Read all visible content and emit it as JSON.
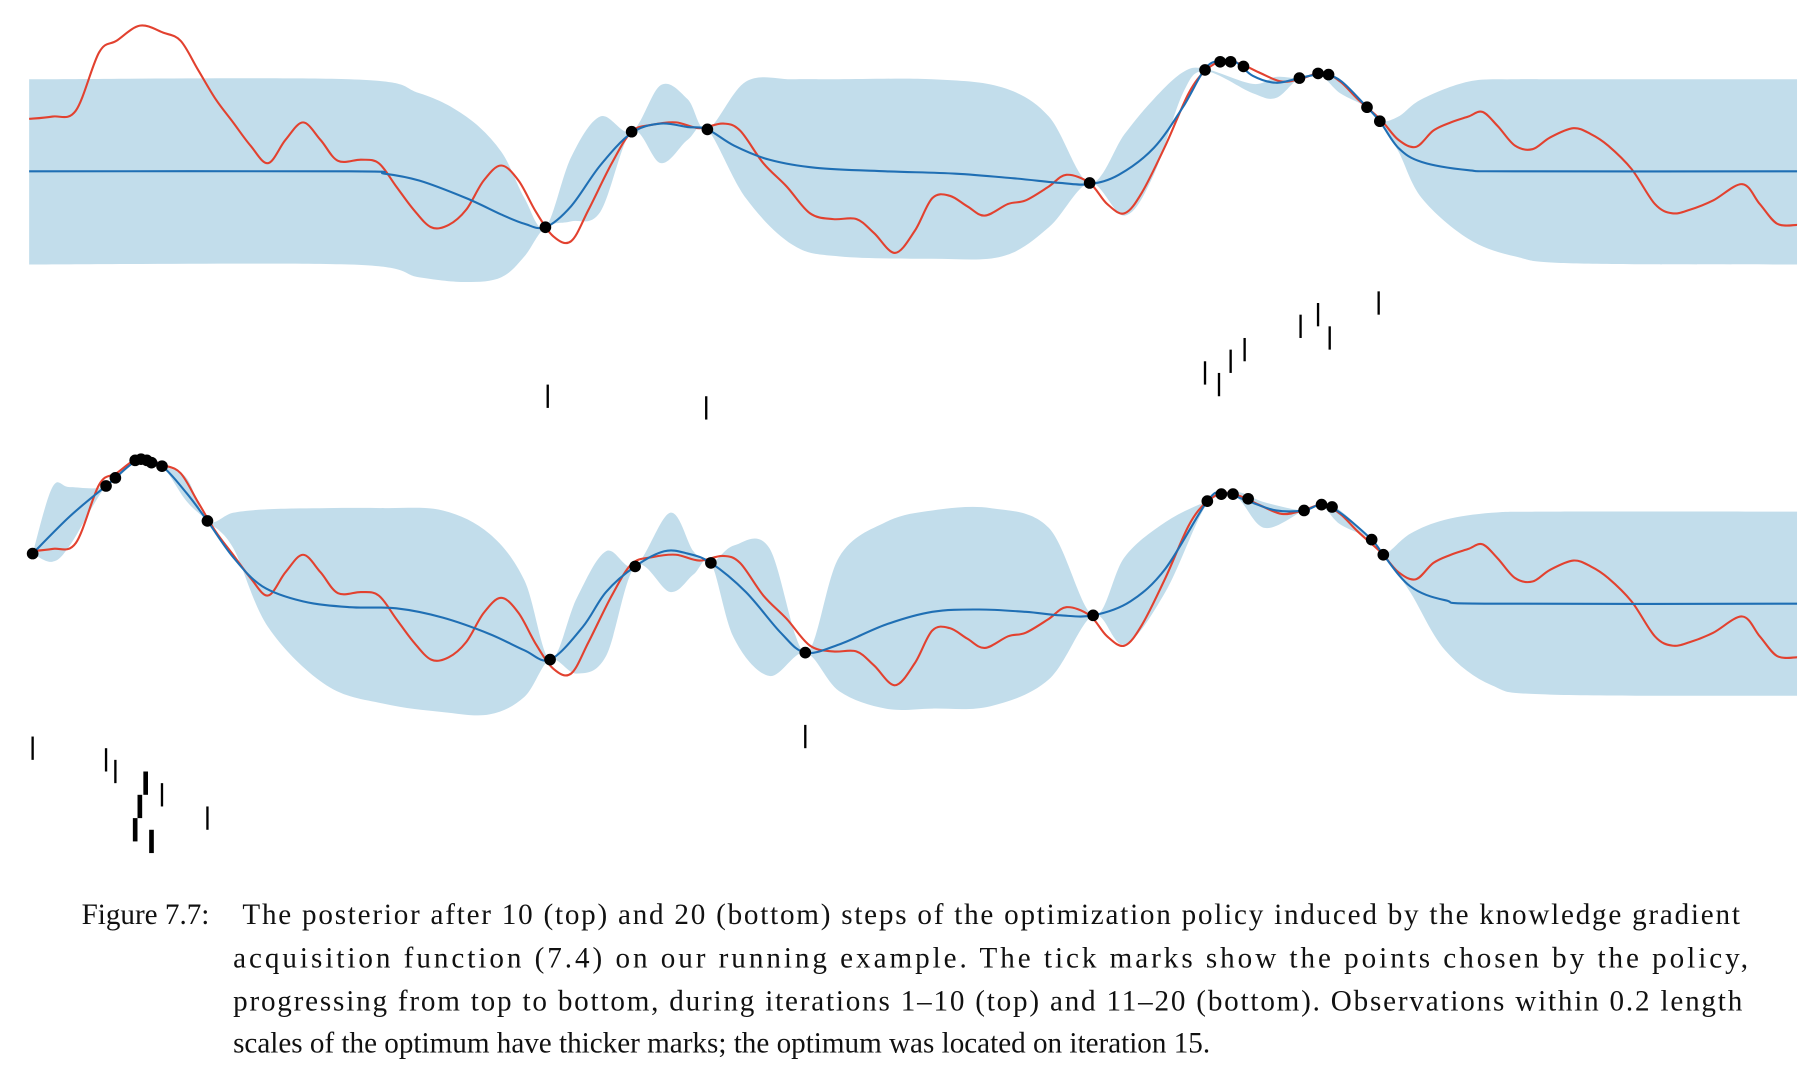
{
  "chart_data": {
    "type": "line",
    "xlim": [
      25,
      1542
    ],
    "ylim": [
      -110,
      130
    ],
    "objective": {
      "color": "#e2412f",
      "x": [
        25,
        45,
        65,
        85,
        100,
        120,
        140,
        155,
        170,
        185,
        200,
        215,
        230,
        245,
        260,
        275,
        290,
        310,
        325,
        340,
        355,
        370,
        385,
        400,
        415,
        430,
        445,
        460,
        475,
        490,
        505,
        525,
        542,
        560,
        580,
        600,
        620,
        635,
        655,
        675,
        695,
        715,
        735,
        750,
        768,
        785,
        800,
        815,
        830,
        845,
        865,
        880,
        900,
        915,
        935,
        950,
        965,
        980,
        1000,
        1020,
        1035,
        1050,
        1065,
        1080,
        1100,
        1118,
        1135,
        1150,
        1165,
        1185,
        1200,
        1215,
        1230,
        1245,
        1260,
        1272,
        1285,
        1300,
        1315,
        1330,
        1350,
        1365,
        1380,
        1400,
        1420,
        1435,
        1450,
        1470,
        1495,
        1510,
        1525,
        1542
      ],
      "values": [
        45,
        47,
        52,
        102,
        112,
        125,
        119,
        112,
        87,
        62,
        42,
        22,
        7,
        27,
        42,
        27,
        9,
        10,
        7,
        -13,
        -33,
        -48,
        -46,
        -33,
        -8,
        5,
        -8,
        -35,
        -56,
        -60,
        -33,
        7,
        34,
        40,
        42,
        37,
        41,
        35,
        7,
        -13,
        -36,
        -41,
        -41,
        -53,
        -70,
        -51,
        -23,
        -21,
        -30,
        -38,
        -28,
        -25,
        -13,
        -3,
        -10,
        -28,
        -36,
        -18,
        22,
        67,
        87,
        95,
        92,
        85,
        77,
        80,
        85,
        77,
        62,
        44,
        27,
        21,
        35,
        42,
        47,
        51,
        39,
        22,
        19,
        29,
        37,
        32,
        22,
        2,
        -28,
        -36,
        -33,
        -25,
        -11,
        -28,
        -45,
        -46
      ]
    },
    "panels": [
      {
        "mean": {
          "color": "#1f6fb4",
          "x": [
            25,
            300,
            330,
            360,
            400,
            430,
            450,
            468,
            490,
            515,
            542,
            567,
            590,
            607,
            630,
            660,
            700,
            760,
            820,
            870,
            910,
            935,
            960,
            990,
            1015,
            1034,
            1047,
            1060,
            1075,
            1095,
            1115,
            1133,
            1150,
            1173,
            1184,
            1200,
            1220,
            1260,
            1300,
            1542
          ],
          "values": [
            0,
            0,
            -2,
            -8,
            -23,
            -37,
            -45,
            -48,
            -30,
            5,
            33,
            41,
            38,
            36,
            22,
            10,
            3,
            0,
            -2,
            -6,
            -10,
            -11,
            -3,
            20,
            55,
            88,
            95,
            94,
            82,
            76,
            80,
            83,
            78,
            55,
            43,
            20,
            8,
            1,
            0,
            0
          ]
        },
        "band": {
          "color": "#c2ddeb",
          "x": [
            25,
            300,
            360,
            400,
            430,
            450,
            468,
            490,
            515,
            542,
            567,
            590,
            607,
            640,
            680,
            720,
            800,
            860,
            900,
            935,
            965,
            990,
            1015,
            1034,
            1075,
            1095,
            1115,
            1133,
            1150,
            1173,
            1184,
            1200,
            1220,
            1260,
            1300,
            1350,
            1542
          ],
          "upper": [
            79,
            79,
            67,
            47,
            17,
            -23,
            -48,
            12,
            47,
            34,
            74,
            62,
            36,
            77,
            79,
            79,
            79,
            72,
            47,
            -10,
            32,
            62,
            85,
            88,
            75,
            81,
            80,
            84,
            79,
            55,
            43,
            47,
            62,
            77,
            79,
            79,
            79
          ],
          "lower": [
            -80,
            -80,
            -91,
            -95,
            -91,
            -73,
            -48,
            -43,
            -35,
            34,
            7,
            27,
            36,
            -23,
            -63,
            -73,
            -75,
            -73,
            -48,
            -10,
            -38,
            -3,
            67,
            86,
            67,
            63,
            80,
            82,
            67,
            55,
            43,
            17,
            -23,
            -58,
            -73,
            -79,
            -80
          ]
        },
        "observations": {
          "color": "#000000",
          "x": [
            468,
            542,
            607,
            935,
            1034,
            1047,
            1056,
            1067,
            1115,
            1131,
            1140,
            1173,
            1184
          ],
          "values": [
            -48,
            34,
            36,
            -10,
            87,
            94,
            94,
            90,
            80,
            84,
            83,
            55,
            43
          ]
        },
        "chosen": {
          "color": "#000000",
          "x": [
            1183,
            1131,
            1116,
            1141,
            1068,
            1056,
            1034,
            1046,
            470,
            606
          ],
          "iterations": [
            1,
            2,
            3,
            4,
            5,
            6,
            7,
            8,
            9,
            10
          ],
          "thick": [
            false,
            false,
            false,
            false,
            false,
            false,
            false,
            false,
            false,
            false
          ]
        }
      },
      {
        "mean": {
          "color": "#1f6fb4",
          "x": [
            28,
            60,
            91,
            120,
            139,
            160,
            178,
            200,
            225,
            260,
            300,
            340,
            380,
            420,
            450,
            472,
            500,
            520,
            545,
            570,
            590,
            610,
            640,
            670,
            691,
            720,
            760,
            800,
            840,
            880,
            910,
            938,
            970,
            1000,
            1036,
            1050,
            1071,
            1095,
            1119,
            1134,
            1150,
            1177,
            1187,
            1210,
            1240,
            1280,
            1542
          ],
          "values": [
            43,
            75,
            101,
            124,
            118,
            95,
            71,
            40,
            15,
            2,
            -3,
            -4,
            -12,
            -26,
            -40,
            -48,
            -20,
            10,
            32,
            45,
            43,
            35,
            10,
            -25,
            -42,
            -35,
            -18,
            -7,
            -5,
            -7,
            -10,
            -10,
            2,
            30,
            88,
            95,
            88,
            80,
            80,
            85,
            78,
            55,
            42,
            15,
            3,
            0,
            0
          ]
        },
        "band": {
          "color": "#c2ddeb",
          "x": [
            28,
            45,
            60,
            91,
            120,
            139,
            160,
            178,
            200,
            230,
            280,
            330,
            380,
            420,
            450,
            472,
            495,
            520,
            545,
            575,
            595,
            610,
            630,
            660,
            691,
            720,
            760,
            800,
            850,
            900,
            938,
            965,
            1000,
            1036,
            1060,
            1085,
            1119,
            1134,
            1150,
            1177,
            1187,
            1210,
            1240,
            1280,
            1330,
            1542
          ],
          "upper": [
            43,
            100,
            100,
            101,
            124,
            118,
            108,
            71,
            78,
            81,
            82,
            82,
            80,
            60,
            20,
            -48,
            5,
            45,
            32,
            78,
            45,
            35,
            50,
            48,
            -42,
            40,
            70,
            80,
            82,
            65,
            -10,
            40,
            70,
            88,
            96,
            87,
            80,
            86,
            80,
            55,
            42,
            60,
            72,
            78,
            79,
            79
          ],
          "lower": [
            43,
            36,
            50,
            101,
            124,
            118,
            88,
            71,
            48,
            -20,
            -70,
            -86,
            -93,
            -95,
            -80,
            -48,
            -60,
            -45,
            32,
            10,
            25,
            35,
            -30,
            -62,
            -42,
            -75,
            -90,
            -90,
            -88,
            -65,
            -10,
            -35,
            10,
            86,
            92,
            65,
            80,
            84,
            68,
            55,
            42,
            10,
            -40,
            -70,
            -78,
            -79
          ]
        },
        "observations": {
          "color": "#000000",
          "x": [
            28,
            91,
            99,
            116,
            121,
            126,
            130,
            139,
            178,
            472,
            545,
            610,
            691,
            938,
            1036,
            1048,
            1058,
            1071,
            1119,
            1134,
            1143,
            1177,
            1187
          ],
          "values": [
            43,
            101,
            108,
            123,
            124,
            123,
            121,
            118,
            71,
            -48,
            32,
            35,
            -42,
            -10,
            88,
            94,
            94,
            90,
            80,
            85,
            83,
            55,
            42
          ]
        },
        "chosen": {
          "color": "#000000",
          "x": [
            691,
            28,
            91,
            99,
            125,
            139,
            120,
            178,
            116,
            130
          ],
          "iterations": [
            11,
            12,
            13,
            14,
            15,
            16,
            17,
            18,
            19,
            20
          ],
          "thick": [
            false,
            false,
            false,
            false,
            true,
            false,
            true,
            false,
            true,
            true
          ]
        }
      }
    ]
  },
  "caption": {
    "label": "Figure 7.7:",
    "lines": [
      "The posterior after 10 (top) and 20 (bottom) steps of the optimization policy induced by the knowledge gradient",
      "acquisition function (7.4) on our running example. The tick marks show the points chosen by the policy,",
      "progressing from top to bottom, during iterations 1–10 (top) and 11–20 (bottom). Observations within 0.2 length",
      "scales of the optimum have thicker marks; the optimum was located on iteration 15."
    ]
  }
}
